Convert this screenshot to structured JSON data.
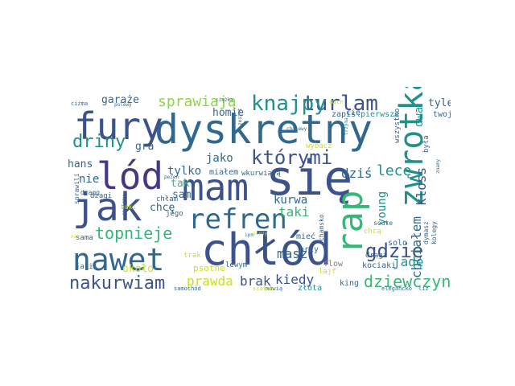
{
  "palette": {
    "teal": "#21908d",
    "blue": "#31688e",
    "navy": "#3b528b",
    "indigo": "#443983",
    "purple": "#482878",
    "green": "#35b779",
    "lime": "#8fd744",
    "yellow": "#c8e020",
    "grey": "#7f7f7f"
  },
  "words": [
    {
      "text": "dyskretny",
      "color": "#31688e"
    },
    {
      "text": "się",
      "color": "#3b528b"
    },
    {
      "text": "chłód",
      "color": "#3b528b"
    },
    {
      "text": "mam",
      "color": "#3b528b"
    },
    {
      "text": "jak",
      "color": "#3b528b"
    },
    {
      "text": "zwrotka",
      "color": "#21908d"
    },
    {
      "text": "lód",
      "color": "#443983"
    },
    {
      "text": "nawet",
      "color": "#31688e"
    },
    {
      "text": "rap",
      "color": "#35b779"
    },
    {
      "text": "fury",
      "color": "#3b528b"
    },
    {
      "text": "refren",
      "color": "#31688e"
    },
    {
      "text": "którymi",
      "color": "#3b528b"
    },
    {
      "text": "turlam",
      "color": "#3b528b"
    },
    {
      "text": "knajpy",
      "color": "#21908d"
    },
    {
      "text": "nakurwiam",
      "color": "#3b528b"
    },
    {
      "text": "dziewczyny",
      "color": "#35b779"
    },
    {
      "text": "gdzie",
      "color": "#3b528b"
    },
    {
      "text": "sprawiają",
      "color": "#8fd744"
    },
    {
      "text": "driny",
      "color": "#21908d"
    },
    {
      "text": "topnieje",
      "color": "#35b779"
    },
    {
      "text": "chciałem",
      "color": "#31688e"
    },
    {
      "text": "prawda",
      "color": "#c8e020"
    },
    {
      "text": "brak",
      "color": "#3b528b"
    },
    {
      "text": "kiedy",
      "color": "#3b528b"
    },
    {
      "text": "lecę",
      "color": "#21908d"
    },
    {
      "text": "jadę",
      "color": "#21908d"
    },
    {
      "text": "young",
      "color": "#21908d"
    },
    {
      "text": "kloss",
      "color": "#3b528b"
    },
    {
      "text": "taki",
      "color": "#35b779"
    },
    {
      "text": "kurwa",
      "color": "#31688e"
    },
    {
      "text": "dziś",
      "color": "#31688e"
    },
    {
      "text": "masz",
      "color": "#31688e"
    },
    {
      "text": "tylko",
      "color": "#31688e"
    },
    {
      "text": "jako",
      "color": "#31688e"
    },
    {
      "text": "garaże",
      "color": "#31688e"
    },
    {
      "text": "homie",
      "color": "#31688e"
    },
    {
      "text": "tyle",
      "color": "#31688e"
    },
    {
      "text": "dwa",
      "color": "#21908d"
    },
    {
      "text": "gra",
      "color": "#31688e"
    },
    {
      "text": "hans",
      "color": "#31688e"
    },
    {
      "text": "nie",
      "color": "#31688e"
    },
    {
      "text": "tak",
      "color": "#35b779"
    },
    {
      "text": "sam",
      "color": "#31688e"
    },
    {
      "text": "chcę",
      "color": "#31688e"
    },
    {
      "text": "około",
      "color": "#c8e020"
    },
    {
      "text": "psotne",
      "color": "#c8e020"
    },
    {
      "text": "twoje",
      "color": "#31688e"
    },
    {
      "text": "pierwsze",
      "color": "#21908d"
    },
    {
      "text": "zapis",
      "color": "#31688e"
    },
    {
      "text": "cię",
      "color": "#31688e"
    },
    {
      "text": "wszystko",
      "color": "#31688e"
    },
    {
      "text": "była",
      "color": "#31688e"
    },
    {
      "text": "mieć",
      "color": "#31688e"
    },
    {
      "text": "przy",
      "color": "#31688e"
    },
    {
      "text": "solo",
      "color": "#31688e"
    },
    {
      "text": "flow",
      "color": "#7f7f7f"
    },
    {
      "text": "king",
      "color": "#31688e"
    },
    {
      "text": "złota",
      "color": "#21908d"
    },
    {
      "text": "kociaki",
      "color": "#31688e"
    },
    {
      "text": "dragi",
      "color": "#31688e"
    },
    {
      "text": "chamsko",
      "color": "#31688e"
    },
    {
      "text": "lewym",
      "color": "#31688e"
    },
    {
      "text": "trak",
      "color": "#c8e020"
    },
    {
      "text": "jego",
      "color": "#31688e"
    },
    {
      "text": "chłam",
      "color": "#31688e"
    },
    {
      "text": "dżagi",
      "color": "#31688e"
    },
    {
      "text": "sama",
      "color": "#31688e"
    },
    {
      "text": "jakiś",
      "color": "#31688e"
    },
    {
      "text": "sprawili",
      "color": "#31688e"
    },
    {
      "text": "miałem",
      "color": "#31688e"
    },
    {
      "text": "wkurwiają",
      "color": "#31688e"
    },
    {
      "text": "wybacz",
      "color": "#c8e020"
    },
    {
      "text": "dymasz",
      "color": "#31688e"
    },
    {
      "text": "kolegy",
      "color": "#31688e"
    },
    {
      "text": "soute",
      "color": "#31688e"
    },
    {
      "text": "chcą",
      "color": "#c8e020"
    },
    {
      "text": "lajf",
      "color": "#c8e020"
    },
    {
      "text": "elegancko",
      "color": "#31688e"
    },
    {
      "text": "liz",
      "color": "#31688e"
    },
    {
      "text": "mówią",
      "color": "#31688e"
    },
    {
      "text": "szafie",
      "color": "#c8e020"
    },
    {
      "text": "samochód",
      "color": "#31688e"
    },
    {
      "text": "ciężka",
      "color": "#31688e"
    },
    {
      "text": "ciżma",
      "color": "#31688e"
    },
    {
      "text": "polewy",
      "color": "#31688e"
    },
    {
      "text": "dragg",
      "color": "#31688e"
    },
    {
      "text": "baki",
      "color": "#c8e020"
    },
    {
      "text": "pezen",
      "color": "#31688e"
    },
    {
      "text": "spojrzy",
      "color": "#31688e"
    },
    {
      "text": "nas",
      "color": "#c8e020"
    },
    {
      "text": "ipn",
      "color": "#31688e"
    },
    {
      "text": "trzyma",
      "color": "#21908d"
    },
    {
      "text": "zeszyt",
      "color": "#31688e"
    },
    {
      "text": "cholewy",
      "color": "#31688e"
    },
    {
      "text": "mich",
      "color": "#c8e020"
    },
    {
      "text": "pieny",
      "color": "#c8e020"
    },
    {
      "text": "znamy",
      "color": "#31688e"
    }
  ]
}
